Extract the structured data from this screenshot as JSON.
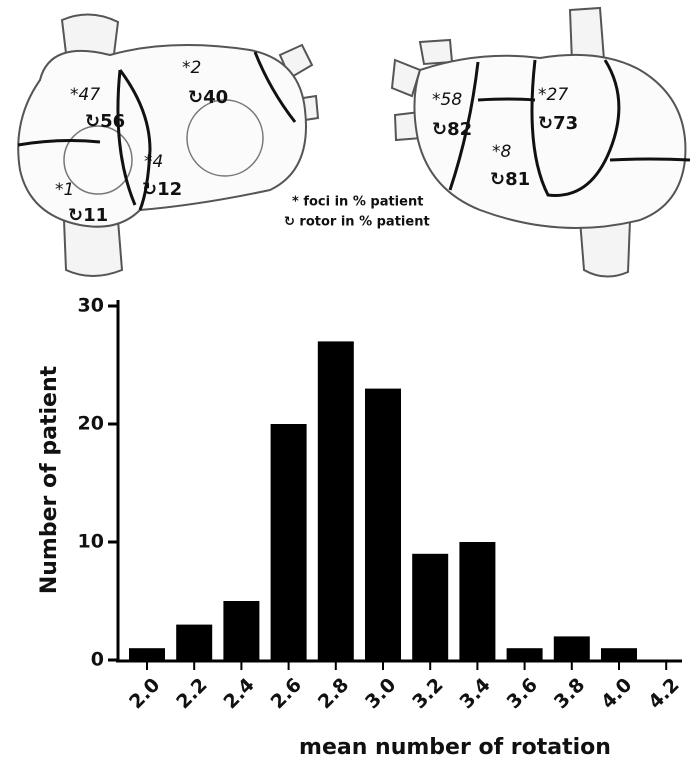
{
  "diagram": {
    "regions": [
      {
        "foci": "*47",
        "rotor": "↻56"
      },
      {
        "foci": "*2",
        "rotor": "↻40"
      },
      {
        "foci": "*4",
        "rotor": "↻12"
      },
      {
        "foci": "*1",
        "rotor": "↻11"
      },
      {
        "foci": "*58",
        "rotor": "↻82"
      },
      {
        "foci": "*27",
        "rotor": "↻73"
      },
      {
        "foci": "*8",
        "rotor": "↻81"
      }
    ],
    "legend": [
      "* foci in % patient",
      "↻ rotor in % patient"
    ]
  },
  "chart_data": {
    "type": "bar",
    "x_label": "mean number of rotation",
    "y_label": "Number of patient",
    "categories": [
      "2.0",
      "2.2",
      "2.4",
      "2.6",
      "2.8",
      "3.0",
      "3.2",
      "3.4",
      "3.6",
      "3.8",
      "4.0",
      "4.2"
    ],
    "values": [
      1,
      3,
      5,
      20,
      27,
      23,
      9,
      10,
      1,
      2,
      1,
      0
    ],
    "color": "#000000",
    "ylim": [
      0,
      30
    ],
    "yticks": [
      0,
      10,
      20,
      30
    ]
  }
}
